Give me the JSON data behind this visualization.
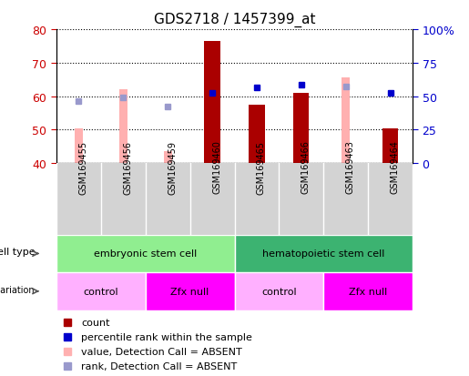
{
  "title": "GDS2718 / 1457399_at",
  "samples": [
    "GSM169455",
    "GSM169456",
    "GSM169459",
    "GSM169460",
    "GSM169465",
    "GSM169466",
    "GSM169463",
    "GSM169464"
  ],
  "ylim_left": [
    40,
    80
  ],
  "ylim_right": [
    0,
    100
  ],
  "yticks_left": [
    40,
    50,
    60,
    70,
    80
  ],
  "yticks_right": [
    0,
    25,
    50,
    75,
    100
  ],
  "red_bar_color": "#AA0000",
  "pink_bar_color": "#FFB0B0",
  "blue_square_color": "#0000CC",
  "light_blue_square_color": "#9999CC",
  "count_bars": [
    null,
    null,
    null,
    76.5,
    57.5,
    61.0,
    null,
    50.5
  ],
  "pink_bars_top": [
    50.5,
    62.0,
    43.5,
    null,
    null,
    null,
    65.5,
    null
  ],
  "blue_squares": [
    null,
    null,
    null,
    61.0,
    62.5,
    63.5,
    null,
    61.0
  ],
  "light_blue_squares": [
    58.5,
    59.5,
    57.0,
    null,
    null,
    null,
    63.0,
    null
  ],
  "ylabel_left_color": "#CC0000",
  "ylabel_right_color": "#0000CC",
  "bar_width": 0.35,
  "pink_bar_width": 0.18,
  "cell_type_groups": [
    {
      "label": "embryonic stem cell",
      "start": 0,
      "end": 4,
      "color": "#90EE90"
    },
    {
      "label": "hematopoietic stem cell",
      "start": 4,
      "end": 8,
      "color": "#3CB371"
    }
  ],
  "genotype_groups": [
    {
      "label": "control",
      "start": 0,
      "end": 2,
      "color": "#FFB0FF"
    },
    {
      "label": "Zfx null",
      "start": 2,
      "end": 4,
      "color": "#FF00FF"
    },
    {
      "label": "control",
      "start": 4,
      "end": 6,
      "color": "#FFB0FF"
    },
    {
      "label": "Zfx null",
      "start": 6,
      "end": 8,
      "color": "#FF00FF"
    }
  ],
  "legend_items": [
    {
      "color": "#AA0000",
      "marker": "s",
      "label": "count"
    },
    {
      "color": "#0000CC",
      "marker": "s",
      "label": "percentile rank within the sample"
    },
    {
      "color": "#FFB0B0",
      "marker": "s",
      "label": "value, Detection Call = ABSENT"
    },
    {
      "color": "#9999CC",
      "marker": "s",
      "label": "rank, Detection Call = ABSENT"
    }
  ]
}
